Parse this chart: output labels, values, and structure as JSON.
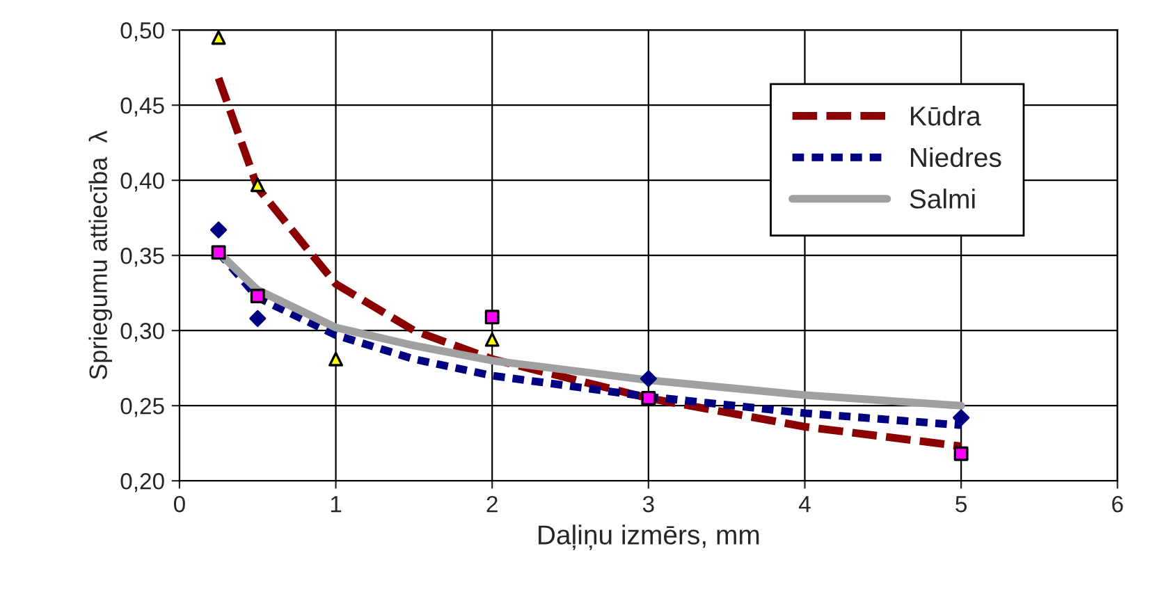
{
  "chart_data": {
    "type": "line",
    "xlabel": "Daļiņu izmērs, mm",
    "ylabel": "Spriegumu attiecība  λ",
    "xlim": [
      0,
      6
    ],
    "xticks": [
      0,
      1,
      2,
      3,
      4,
      5,
      6
    ],
    "ylim": [
      0.2,
      0.5
    ],
    "yticks": [
      {
        "value": 0.2,
        "label": "0,20"
      },
      {
        "value": 0.25,
        "label": "0,25"
      },
      {
        "value": 0.3,
        "label": "0,30"
      },
      {
        "value": 0.35,
        "label": "0,35"
      },
      {
        "value": 0.4,
        "label": "0,40"
      },
      {
        "value": 0.45,
        "label": "0,45"
      },
      {
        "value": 0.5,
        "label": "0,50"
      }
    ],
    "grid": true,
    "legend": "top right",
    "series": [
      {
        "type": "scatter",
        "marker": "triangle",
        "color": "#ffff00",
        "x": [
          0.25,
          0.5,
          1,
          2
        ],
        "values": [
          0.495,
          0.397,
          0.281,
          0.294
        ]
      },
      {
        "type": "scatter",
        "marker": "diamond",
        "color": "#000080",
        "x": [
          0.25,
          0.5,
          3,
          5
        ],
        "values": [
          0.367,
          0.308,
          0.268,
          0.242
        ]
      },
      {
        "type": "scatter",
        "marker": "square",
        "color": "#ff00ff",
        "x": [
          0.25,
          0.5,
          2,
          3,
          5
        ],
        "values": [
          0.352,
          0.323,
          0.309,
          0.255,
          0.218
        ]
      },
      {
        "name": "Kūdra",
        "color": "#8b0000",
        "line_style": "dashed",
        "x": [
          0.25,
          0.5,
          1,
          1.5,
          2,
          3,
          4,
          5
        ],
        "values": [
          0.468,
          0.395,
          0.331,
          0.3,
          0.281,
          0.255,
          0.236,
          0.223
        ]
      },
      {
        "name": "Niedres",
        "color": "#000080",
        "line_style": "dotted",
        "x": [
          0.25,
          0.5,
          1,
          1.5,
          2,
          3,
          4,
          5
        ],
        "values": [
          0.352,
          0.322,
          0.297,
          0.281,
          0.27,
          0.256,
          0.245,
          0.237
        ]
      },
      {
        "name": "Salmi",
        "color": "#a0a0a0",
        "line_style": "solid",
        "x": [
          0.25,
          0.5,
          1,
          1.5,
          2,
          3,
          4,
          5
        ],
        "values": [
          0.352,
          0.327,
          0.302,
          0.29,
          0.28,
          0.267,
          0.257,
          0.25
        ]
      }
    ]
  }
}
